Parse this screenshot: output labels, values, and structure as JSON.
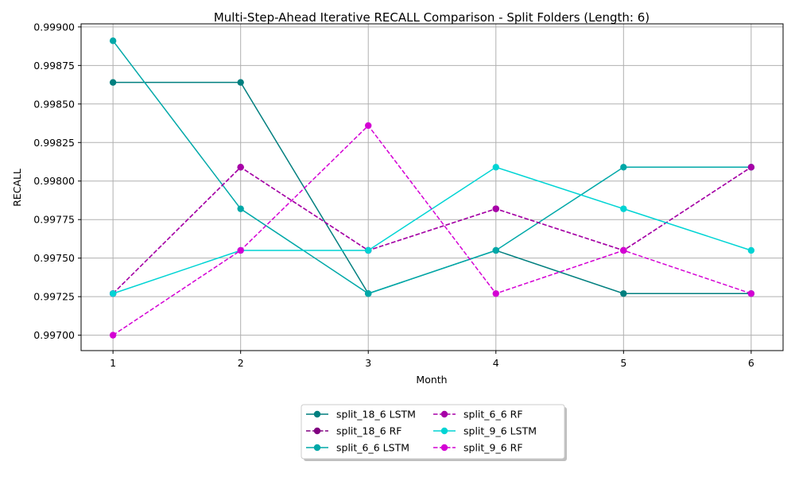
{
  "chart_data": {
    "type": "line",
    "title": "Multi-Step-Ahead Iterative RECALL Comparison - Split Folders (Length: 6)",
    "xlabel": "Month",
    "ylabel": "RECALL",
    "x": [
      1,
      2,
      3,
      4,
      5,
      6
    ],
    "x_ticks": [
      "1",
      "2",
      "3",
      "4",
      "5",
      "6"
    ],
    "xlim": [
      0.75,
      6.25
    ],
    "ylim": [
      0.9969,
      0.99902
    ],
    "y_ticks": [
      "0.99700",
      "0.99725",
      "0.99750",
      "0.99775",
      "0.99800",
      "0.99825",
      "0.99850",
      "0.99875",
      "0.99900"
    ],
    "grid": true,
    "legend_position": "bottom-center",
    "series": [
      {
        "name": "split_18_6 LSTM",
        "color": "#007f7f",
        "dash": false,
        "values": [
          0.99864,
          0.99864,
          0.99727,
          0.99755,
          0.99727,
          0.99727
        ]
      },
      {
        "name": "split_18_6 RF",
        "color": "#800080",
        "dash": true,
        "values": [
          0.99727,
          0.99809,
          0.99755,
          0.99782,
          0.99755,
          0.99809
        ]
      },
      {
        "name": "split_6_6 LSTM",
        "color": "#00a8a8",
        "dash": false,
        "values": [
          0.99891,
          0.99782,
          0.99727,
          0.99755,
          0.99809,
          0.99809
        ]
      },
      {
        "name": "split_6_6 RF",
        "color": "#a800a8",
        "dash": true,
        "values": [
          0.99727,
          0.99809,
          0.99755,
          0.99782,
          0.99755,
          0.99809
        ]
      },
      {
        "name": "split_9_6 LSTM",
        "color": "#00d4d4",
        "dash": false,
        "values": [
          0.99727,
          0.99755,
          0.99755,
          0.99809,
          0.99782,
          0.99755
        ]
      },
      {
        "name": "split_9_6 RF",
        "color": "#d400d4",
        "dash": true,
        "values": [
          0.997,
          0.99755,
          0.99836,
          0.99727,
          0.99755,
          0.99727
        ]
      }
    ]
  }
}
